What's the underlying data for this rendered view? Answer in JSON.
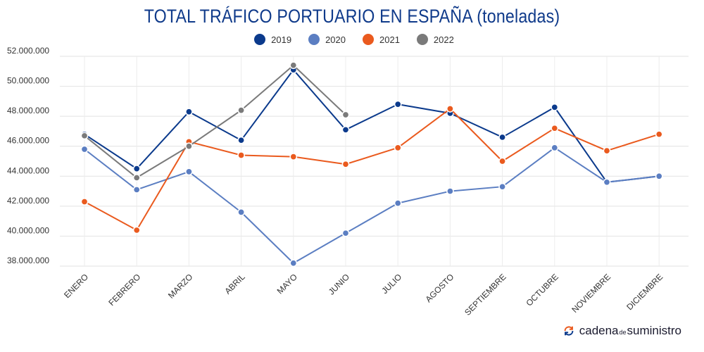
{
  "chart_data": {
    "type": "line",
    "title": "TOTAL TRÁFICO PORTUARIO EN ESPAÑA (toneladas)",
    "categories": [
      "ENERO",
      "FEBRERO",
      "MARZO",
      "ABRIL",
      "MAYO",
      "JUNIO",
      "JULIO",
      "AGOSTO",
      "SEPTIEMBRE",
      "OCTUBRE",
      "NOVIEMBRE",
      "DICIEMBRE"
    ],
    "y_ticks": [
      "38.000.000",
      "40.000.000",
      "42.000.000",
      "44.000.000",
      "46.000.000",
      "48.000.000",
      "50.000.000",
      "52.000.000"
    ],
    "y_tick_values": [
      38000000,
      40000000,
      42000000,
      44000000,
      46000000,
      48000000,
      50000000,
      52000000
    ],
    "ylim": [
      38000000,
      52000000
    ],
    "grid": true,
    "legend_position": "top-center",
    "series": [
      {
        "name": "2019",
        "color": "#0b3a8c",
        "values": [
          46800000,
          44500000,
          48300000,
          46400000,
          51100000,
          47100000,
          48800000,
          48200000,
          46600000,
          48600000,
          43600000,
          44000000
        ]
      },
      {
        "name": "2020",
        "color": "#5b7ec2",
        "values": [
          45800000,
          43100000,
          44300000,
          41600000,
          38200000,
          40200000,
          42200000,
          43000000,
          43300000,
          45900000,
          43600000,
          44000000
        ]
      },
      {
        "name": "2021",
        "color": "#ea5a1e",
        "values": [
          42300000,
          40400000,
          46300000,
          45400000,
          45300000,
          44800000,
          45900000,
          48500000,
          45000000,
          47200000,
          45700000,
          46800000
        ]
      },
      {
        "name": "2022",
        "color": "#7a7a7a",
        "values": [
          46700000,
          43900000,
          46000000,
          48400000,
          51400000,
          48100000,
          null,
          null,
          null,
          null,
          null,
          null
        ]
      }
    ]
  },
  "brand": {
    "part1": "cadena",
    "part2": "de",
    "part3": "suministro",
    "logo_icon": "refresh-arrows-icon"
  }
}
